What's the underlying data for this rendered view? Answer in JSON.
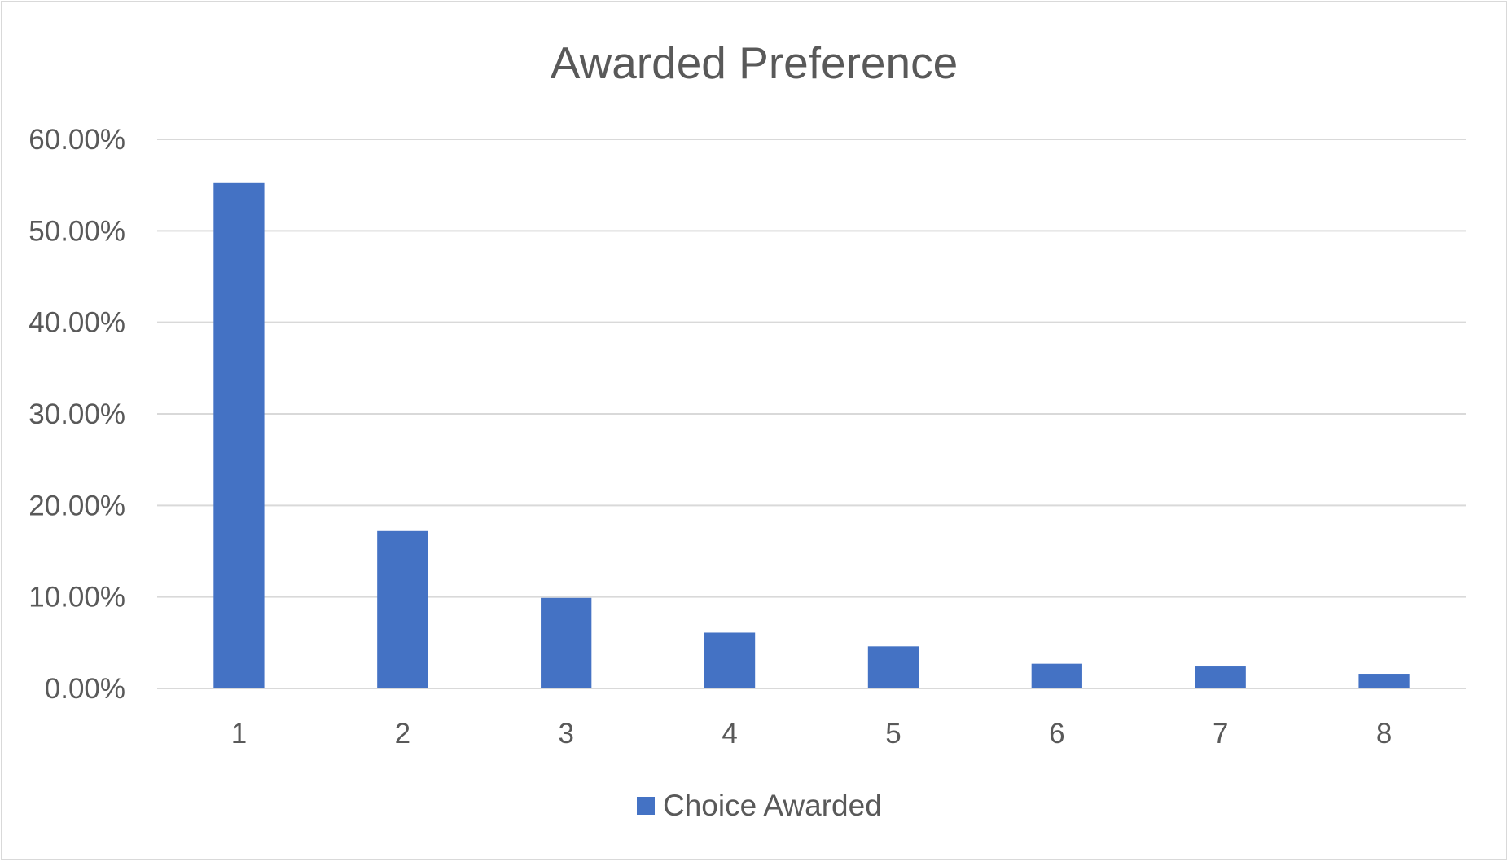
{
  "chart_data": {
    "type": "bar",
    "title": "Awarded Preference",
    "xlabel": "",
    "ylabel": "",
    "categories": [
      "1",
      "2",
      "3",
      "4",
      "5",
      "6",
      "7",
      "8"
    ],
    "series": [
      {
        "name": "Choice Awarded",
        "values": [
          0.553,
          0.172,
          0.099,
          0.061,
          0.046,
          0.027,
          0.024,
          0.016
        ]
      }
    ],
    "ylim": [
      0,
      0.6
    ],
    "yticks": [
      0,
      0.1,
      0.2,
      0.3,
      0.4,
      0.5,
      0.6
    ],
    "ytick_labels": [
      "0.00%",
      "10.00%",
      "20.00%",
      "30.00%",
      "40.00%",
      "50.00%",
      "60.00%"
    ],
    "grid": true,
    "legend_position": "bottom",
    "bar_color": "#4472c4"
  }
}
